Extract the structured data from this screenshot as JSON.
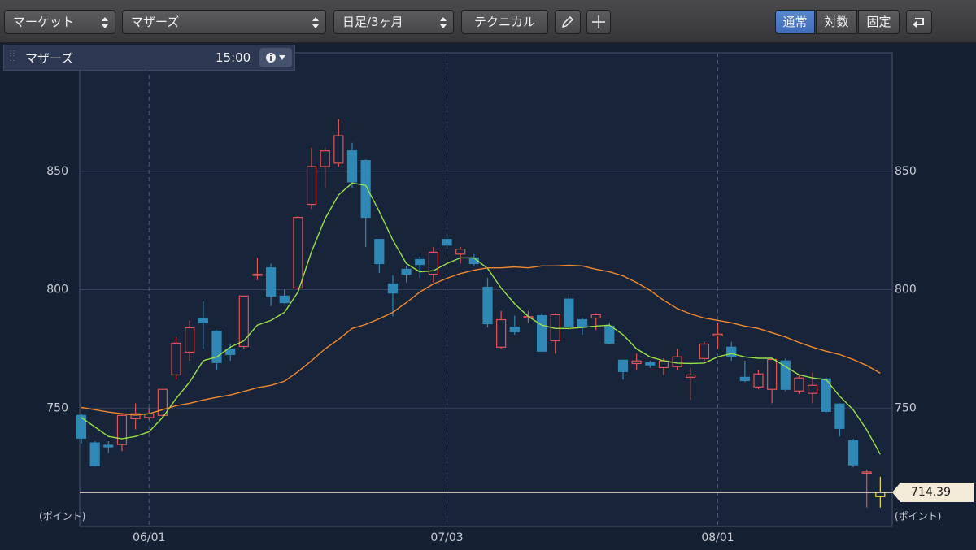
{
  "toolbar": {
    "market": "マーケット",
    "index": "マザーズ",
    "period": "日足/3ヶ月",
    "technical": "テクニカル",
    "modes": [
      "通常",
      "対数",
      "固定"
    ]
  },
  "panel": {
    "title": "マザーズ",
    "time": "15:00"
  },
  "chart_data": {
    "type": "candlestick",
    "categories": [
      null,
      null,
      null,
      null,
      null,
      "06/01",
      null,
      null,
      null,
      null,
      null,
      null,
      null,
      null,
      null,
      null,
      null,
      null,
      null,
      null,
      null,
      null,
      null,
      null,
      null,
      null,
      null,
      "07/03",
      null,
      null,
      null,
      null,
      null,
      null,
      null,
      null,
      null,
      null,
      null,
      null,
      null,
      null,
      null,
      null,
      null,
      null,
      null,
      "08/01",
      null,
      null,
      null,
      null,
      null,
      null,
      null,
      null,
      null,
      null,
      null,
      null
    ],
    "open": [
      746.9,
      735.3,
      734.3,
      734.6,
      745.5,
      746,
      746.9,
      764,
      773.6,
      787.7,
      782.5,
      774.7,
      776,
      806,
      809.2,
      797.3,
      800.7,
      836,
      852,
      853.4,
      858.6,
      854.5,
      821.2,
      802.4,
      808.6,
      812.7,
      806.5,
      821.2,
      815,
      813.4,
      801,
      775.7,
      784.2,
      788.4,
      789,
      778.4,
      796,
      787.3,
      788,
      784.6,
      770.2,
      768.8,
      769.2,
      767.1,
      767.5,
      763,
      770.9,
      780.5,
      775.7,
      763,
      758.9,
      757.9,
      769.9,
      757.2,
      756.2,
      762.3,
      751.7,
      736.3,
      722.5,
      712.6
    ],
    "high": [
      747.6,
      736,
      736,
      747.6,
      752,
      750,
      758,
      780,
      787,
      795,
      783,
      777,
      797.5,
      813.4,
      811,
      800,
      831,
      860,
      860,
      871.9,
      862,
      855,
      821.5,
      806,
      810,
      814,
      818,
      823.3,
      818,
      815,
      805,
      791,
      789,
      791,
      790,
      790,
      798,
      788,
      790,
      786,
      770.5,
      773,
      770,
      771,
      775,
      767,
      778,
      786,
      778,
      770,
      766,
      771,
      771,
      764,
      765,
      763,
      752,
      737,
      724,
      721
    ],
    "low": [
      735,
      725.3,
      731,
      731.8,
      741,
      745,
      746,
      762,
      770,
      775,
      766,
      770,
      775,
      804,
      793,
      794,
      800,
      834,
      842.8,
      852,
      843,
      818,
      807,
      788.7,
      803,
      805,
      803,
      817,
      811,
      810,
      784,
      775,
      781,
      786,
      774,
      773,
      783,
      781,
      783,
      777,
      762,
      766,
      767,
      764,
      766,
      753.4,
      770,
      775,
      770,
      761,
      758,
      752,
      757,
      756,
      752,
      748,
      738,
      725,
      708,
      708
    ],
    "close": [
      737.3,
      725.7,
      733.6,
      746.9,
      747.6,
      747.5,
      757.9,
      777.4,
      783.9,
      786,
      769.2,
      772.6,
      797.3,
      806.5,
      797.3,
      794.5,
      830.5,
      852,
      858.6,
      865,
      845.5,
      830.5,
      811,
      798.6,
      806.5,
      810.6,
      815.8,
      818.8,
      817.1,
      811,
      785.6,
      787.3,
      782.2,
      788.6,
      774,
      789.4,
      784.6,
      784.2,
      789.4,
      777.4,
      765.4,
      769.9,
      768.2,
      769.9,
      771.6,
      764,
      777,
      781.2,
      771.6,
      761.6,
      764.4,
      770.5,
      757.9,
      762.7,
      759.6,
      748.6,
      741.4,
      726,
      723,
      714.39
    ],
    "up_color": "#e05555",
    "down_color": "#2f88b5",
    "last_color": "#f0e040",
    "lines": [
      {
        "color": "#9be04a",
        "values": [
          746,
          742,
          738,
          737,
          738,
          740,
          746,
          754,
          761,
          770,
          771.6,
          775.7,
          778.4,
          785,
          787,
          790.4,
          799,
          816,
          830,
          840,
          845,
          844,
          833,
          821,
          811,
          807.5,
          808,
          811,
          813.4,
          813.4,
          809,
          800.7,
          794,
          788.7,
          785,
          783.6,
          783.6,
          784,
          784.6,
          785,
          781,
          775,
          771.6,
          770,
          769,
          768.8,
          769,
          771.6,
          773,
          771.6,
          771,
          771,
          767.5,
          764,
          762.7,
          762,
          755,
          749.3,
          740.8,
          730.5
        ]
      },
      {
        "color": "#f08a30",
        "values": [
          750.3,
          749.3,
          748.3,
          747.6,
          747,
          747.6,
          749.3,
          751,
          752,
          753.4,
          754.5,
          755.5,
          757,
          758.6,
          759.6,
          761.3,
          765.4,
          770,
          775,
          779,
          783.6,
          785.3,
          787.7,
          790.4,
          794.5,
          799,
          802.4,
          804.8,
          806.8,
          808.2,
          809.2,
          809.2,
          809.6,
          809.2,
          810,
          810,
          810.3,
          810,
          808.6,
          807.5,
          805.8,
          803,
          799.7,
          795.5,
          792,
          789.7,
          788,
          787,
          786,
          784.6,
          783.6,
          781.8,
          780,
          777.7,
          775.7,
          774,
          772.6,
          770.5,
          768,
          764.7
        ]
      }
    ],
    "last_price": 714.39,
    "price_line_color": "#f4ead8",
    "ylim": [
      700,
      900
    ],
    "yticks": [
      750,
      800,
      850
    ],
    "y_label": "(ポイント)",
    "grid": true
  }
}
